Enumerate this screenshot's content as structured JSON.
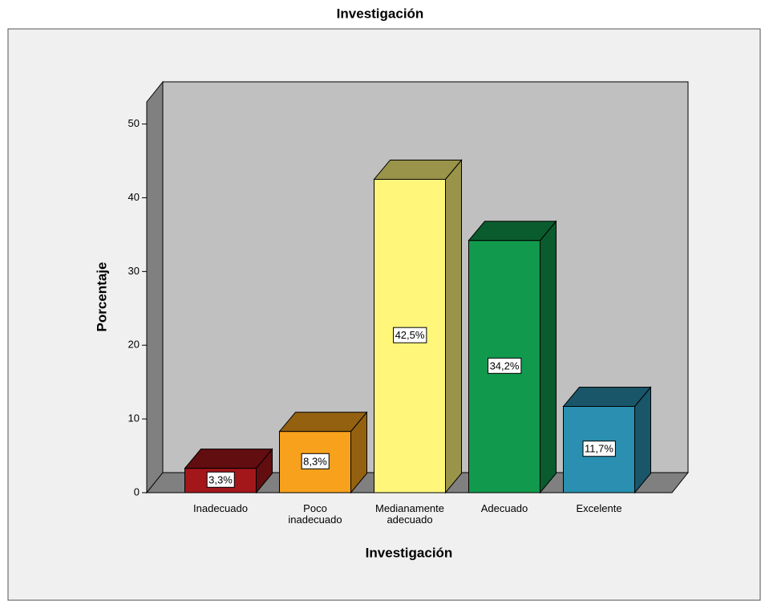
{
  "chart_data": {
    "type": "bar3d",
    "title": "Investigación",
    "categories": [
      "Inadecuado",
      "Poco\ninadecuado",
      "Medianamente\nadecuado",
      "Adecuado",
      "Excelente"
    ],
    "values": [
      3.3,
      8.3,
      42.5,
      34.2,
      11.7
    ],
    "value_labels": [
      "3,3%",
      "8,3%",
      "42,5%",
      "34,2%",
      "11,7%"
    ],
    "colors": [
      "#a3161a",
      "#f7a11c",
      "#fff67a",
      "#119a4d",
      "#2a8fb0"
    ],
    "xlabel": "Investigación",
    "ylabel": "Porcentaje",
    "ylim": [
      0,
      53
    ],
    "yticks": [
      0,
      10,
      20,
      30,
      40,
      50
    ],
    "grid": false
  }
}
